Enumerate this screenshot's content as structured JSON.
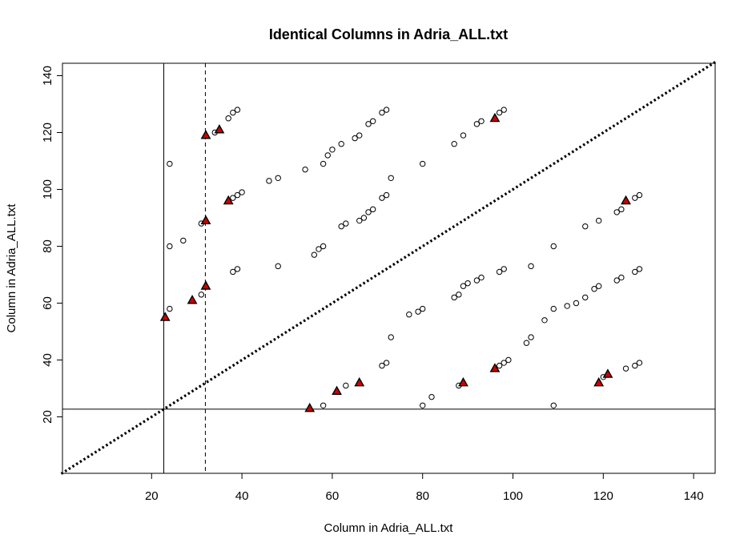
{
  "chart_data": {
    "type": "scatter",
    "title": "Identical Columns in Adria_ALL.txt",
    "xlabel": "Column in Adria_ALL.txt",
    "ylabel": "Column in Adria_ALL.txt",
    "xlim": [
      0,
      145
    ],
    "ylim": [
      0,
      145
    ],
    "xticks": [
      "20",
      "40",
      "60",
      "80",
      "100",
      "120",
      "140"
    ],
    "yticks": [
      "20",
      "40",
      "60",
      "80",
      "100",
      "120",
      "140"
    ],
    "grid": false,
    "reference_lines": {
      "diagonal": "y = x (dotted)",
      "solid_vertical_x": 22.7,
      "solid_horizontal_y": 22.7,
      "dashed_vertical_x": 31.9
    },
    "series": [
      {
        "marker": "open-circle",
        "color": "#000000",
        "points": [
          [
            24,
            109
          ],
          [
            24,
            80
          ],
          [
            24,
            58
          ],
          [
            27,
            82
          ],
          [
            31,
            63
          ],
          [
            31,
            88
          ],
          [
            34,
            120
          ],
          [
            37,
            125
          ],
          [
            38,
            127
          ],
          [
            39,
            128
          ],
          [
            38,
            97
          ],
          [
            39,
            98
          ],
          [
            40,
            99
          ],
          [
            38,
            71
          ],
          [
            39,
            72
          ],
          [
            46,
            103
          ],
          [
            48,
            104
          ],
          [
            48,
            73
          ],
          [
            54,
            107
          ],
          [
            56,
            77
          ],
          [
            57,
            79
          ],
          [
            58,
            80
          ],
          [
            58,
            109
          ],
          [
            59,
            112
          ],
          [
            60,
            114
          ],
          [
            62,
            116
          ],
          [
            62,
            87
          ],
          [
            63,
            88
          ],
          [
            58,
            24
          ],
          [
            63,
            31
          ],
          [
            65,
            118
          ],
          [
            66,
            119
          ],
          [
            66,
            89
          ],
          [
            67,
            90
          ],
          [
            68,
            92
          ],
          [
            69,
            93
          ],
          [
            68,
            123
          ],
          [
            69,
            124
          ],
          [
            71,
            127
          ],
          [
            72,
            128
          ],
          [
            71,
            97
          ],
          [
            72,
            98
          ],
          [
            73,
            104
          ],
          [
            73,
            48
          ],
          [
            71,
            38
          ],
          [
            72,
            39
          ],
          [
            77,
            56
          ],
          [
            79,
            57
          ],
          [
            80,
            58
          ],
          [
            80,
            109
          ],
          [
            80,
            24
          ],
          [
            82,
            27
          ],
          [
            87,
            116
          ],
          [
            89,
            119
          ],
          [
            87,
            62
          ],
          [
            88,
            63
          ],
          [
            89,
            66
          ],
          [
            90,
            67
          ],
          [
            92,
            68
          ],
          [
            93,
            69
          ],
          [
            88,
            31
          ],
          [
            92,
            123
          ],
          [
            93,
            124
          ],
          [
            97,
            127
          ],
          [
            98,
            128
          ],
          [
            97,
            71
          ],
          [
            98,
            72
          ],
          [
            97,
            38
          ],
          [
            98,
            39
          ],
          [
            99,
            40
          ],
          [
            103,
            46
          ],
          [
            104,
            48
          ],
          [
            104,
            73
          ],
          [
            107,
            54
          ],
          [
            109,
            80
          ],
          [
            109,
            58
          ],
          [
            109,
            24
          ],
          [
            112,
            59
          ],
          [
            114,
            60
          ],
          [
            116,
            87
          ],
          [
            116,
            62
          ],
          [
            118,
            65
          ],
          [
            119,
            66
          ],
          [
            119,
            89
          ],
          [
            120,
            34
          ],
          [
            123,
            92
          ],
          [
            124,
            93
          ],
          [
            123,
            68
          ],
          [
            124,
            69
          ],
          [
            125,
            37
          ],
          [
            127,
            97
          ],
          [
            128,
            98
          ],
          [
            127,
            71
          ],
          [
            128,
            72
          ],
          [
            127,
            38
          ],
          [
            128,
            39
          ]
        ]
      },
      {
        "marker": "filled-triangle",
        "color": "#cc0000",
        "points": [
          [
            23,
            55
          ],
          [
            29,
            61
          ],
          [
            32,
            66
          ],
          [
            32,
            89
          ],
          [
            32,
            119
          ],
          [
            35,
            121
          ],
          [
            37,
            96
          ],
          [
            55,
            23
          ],
          [
            61,
            29
          ],
          [
            66,
            32
          ],
          [
            89,
            32
          ],
          [
            96,
            37
          ],
          [
            96,
            125
          ],
          [
            119,
            32
          ],
          [
            121,
            35
          ],
          [
            125,
            96
          ]
        ]
      }
    ]
  }
}
